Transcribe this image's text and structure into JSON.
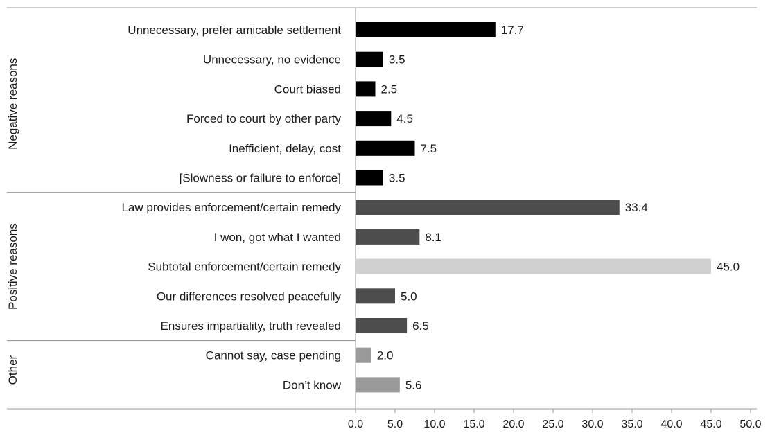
{
  "chart_data": {
    "type": "bar",
    "orientation": "horizontal",
    "xlim": [
      0,
      50
    ],
    "x_ticks": [
      "0.0",
      "5.0",
      "10.0",
      "15.0",
      "20.0",
      "25.0",
      "30.0",
      "35.0",
      "40.0",
      "45.0",
      "50.0"
    ],
    "grid": false,
    "groups": [
      {
        "name": "Negative reasons",
        "color": "#000000",
        "items": [
          {
            "label": "Unnecessary, prefer amicable settlement",
            "value": 17.7,
            "value_label": "17.7"
          },
          {
            "label": "Unnecessary, no evidence",
            "value": 3.5,
            "value_label": "3.5"
          },
          {
            "label": "Court biased",
            "value": 2.5,
            "value_label": "2.5"
          },
          {
            "label": "Forced to court by other party",
            "value": 4.5,
            "value_label": "4.5"
          },
          {
            "label": "Inefficient, delay, cost",
            "value": 7.5,
            "value_label": "7.5"
          },
          {
            "label": "[Slowness or failure to enforce]",
            "value": 3.5,
            "value_label": "3.5"
          }
        ]
      },
      {
        "name": "Positive reasons",
        "color": "#4d4d4d",
        "items": [
          {
            "label": "Law provides enforcement/certain remedy",
            "value": 33.4,
            "value_label": "33.4"
          },
          {
            "label": "I won, got what I wanted",
            "value": 8.1,
            "value_label": "8.1"
          },
          {
            "label": "Subtotal enforcement/certain remedy",
            "value": 45.0,
            "value_label": "45.0",
            "color": "#d0d0d0"
          },
          {
            "label": "Our differences resolved peacefully",
            "value": 5.0,
            "value_label": "5.0"
          },
          {
            "label": "Ensures impartiality, truth revealed",
            "value": 6.5,
            "value_label": "6.5"
          }
        ]
      },
      {
        "name": "Other",
        "color": "#9a9a9a",
        "items": [
          {
            "label": "Cannot say, case pending",
            "value": 2.0,
            "value_label": "2.0"
          },
          {
            "label": "Don’t know",
            "value": 5.6,
            "value_label": "5.6"
          }
        ]
      }
    ]
  }
}
